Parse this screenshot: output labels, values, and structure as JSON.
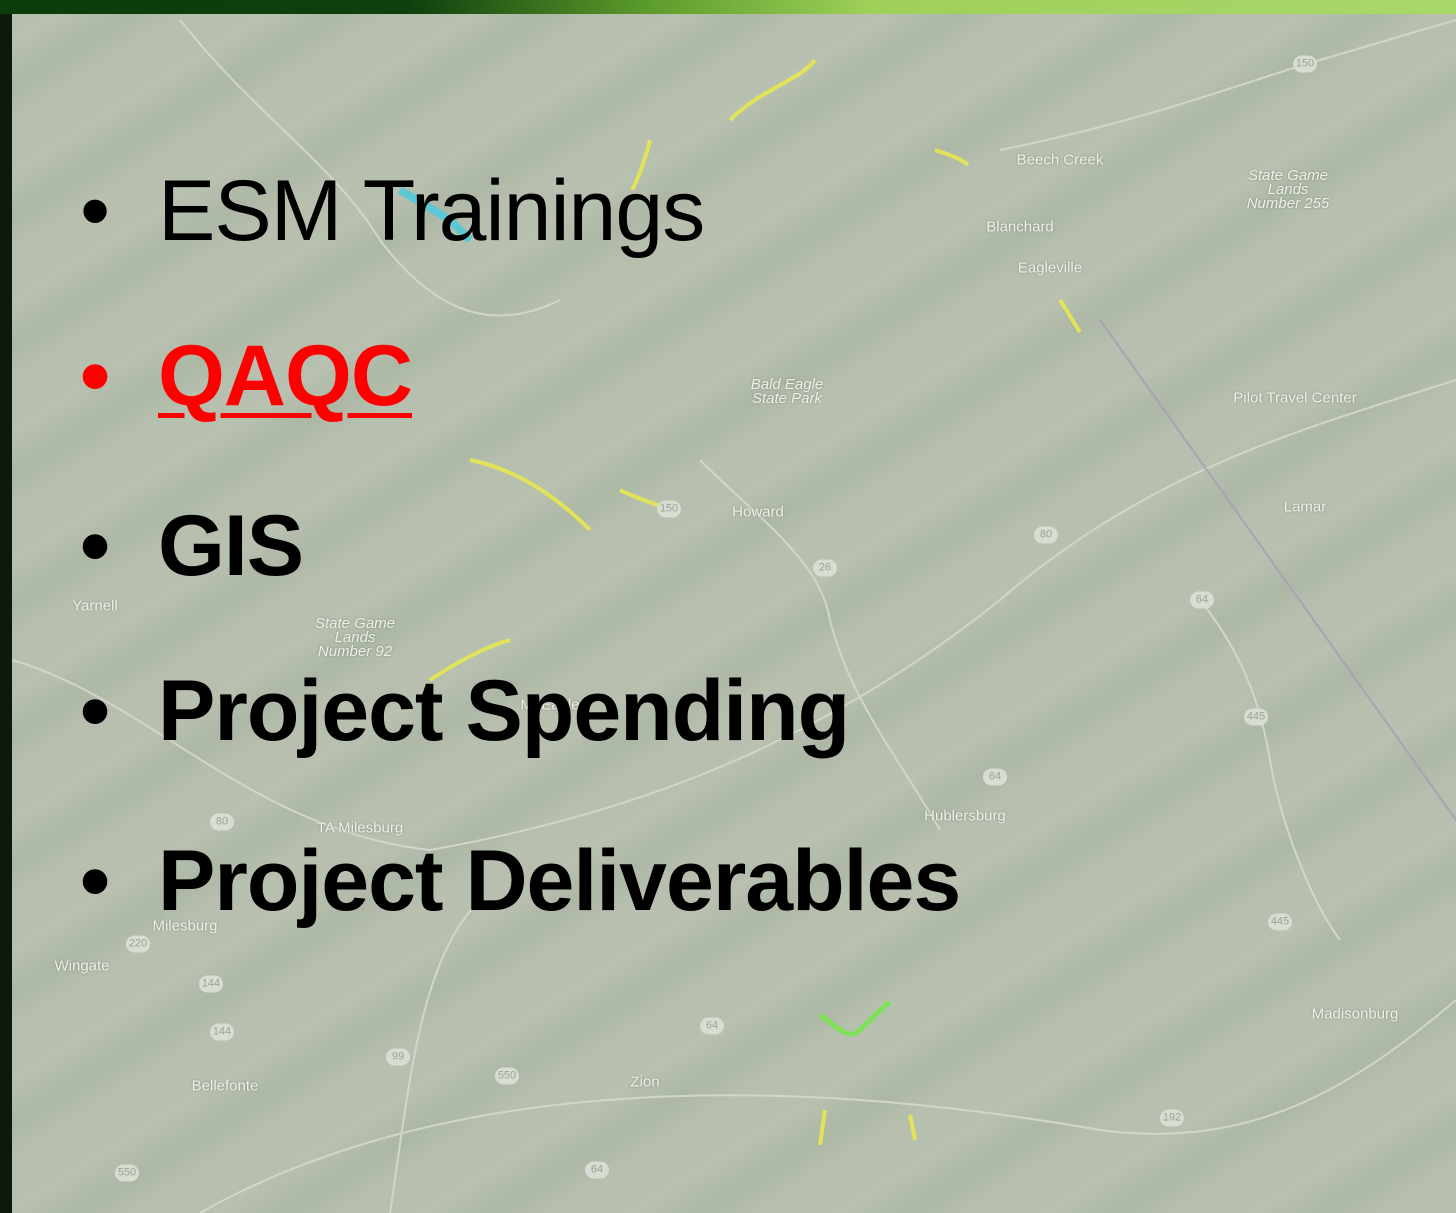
{
  "bullets": [
    "ESM Trainings",
    "QAQC",
    "GIS",
    "Project Spending",
    "Project Deliverables"
  ],
  "map": {
    "places": [
      "Beech Creek",
      "Blanchard",
      "Eagleville",
      "State Game Lands Number 255",
      "Bald Eagle State Park",
      "Pilot Travel Center",
      "Howard",
      "Lamar",
      "Yarnell",
      "State Game Lands Number 92",
      "Mt Eagle",
      "Hublersburg",
      "TA Milesburg",
      "Milesburg",
      "Wingate",
      "Bellefonte",
      "Zion",
      "Madisonburg"
    ],
    "routes": [
      "150",
      "150",
      "80",
      "26",
      "64",
      "445",
      "64",
      "80",
      "445",
      "220",
      "144",
      "144",
      "99",
      "550",
      "64",
      "192",
      "550",
      "64"
    ]
  }
}
